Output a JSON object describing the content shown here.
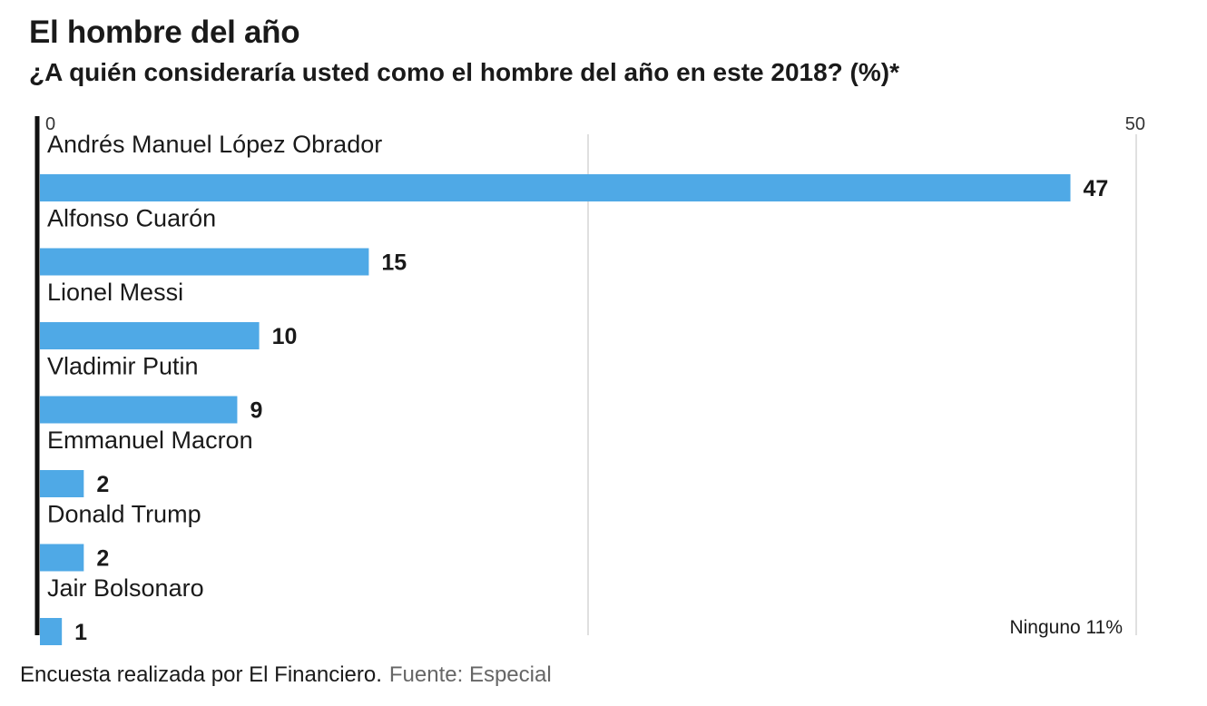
{
  "title": "El hombre del año",
  "subtitle": "¿A quién consideraría usted como el hombre del año en este 2018? (%)*",
  "footer": {
    "note": "Encuesta realizada por El Financiero.",
    "source": "Fuente: Especial"
  },
  "colors": {
    "bar": "#4fa9e6",
    "axis": "#111111",
    "grid": "#cccccc"
  },
  "chart_data": {
    "type": "bar",
    "orientation": "horizontal",
    "categories": [
      "Andrés Manuel López Obrador",
      "Alfonso Cuarón",
      "Lionel Messi",
      "Vladimir Putin",
      "Emmanuel Macron",
      "Donald Trump",
      "Jair Bolsonaro"
    ],
    "values": [
      47,
      15,
      10,
      9,
      2,
      2,
      1
    ],
    "value_labels": [
      "47",
      "15",
      "10",
      "9",
      "2",
      "2",
      "1"
    ],
    "xlim": [
      0,
      50
    ],
    "ticks": [
      "0",
      "50"
    ],
    "tick_values": [
      0,
      50
    ],
    "gridlines": [
      25,
      50
    ],
    "annotation": "Ninguno 11%",
    "legend": "none"
  }
}
